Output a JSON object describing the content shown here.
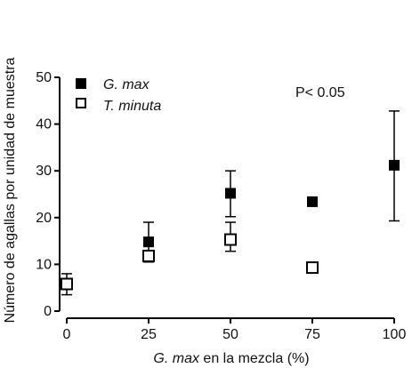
{
  "chart_data": {
    "type": "scatter",
    "title": "",
    "xlabel": {
      "italic_part": "G. max",
      "rest": " en la mezcla (%)"
    },
    "ylabel": "Número de agallas por unidad de muestra",
    "xlim": [
      0,
      100
    ],
    "ylim": [
      0,
      50
    ],
    "xticks": [
      "0",
      "25",
      "50",
      "75",
      "100"
    ],
    "yticks": [
      "0",
      "10",
      "20",
      "30",
      "40",
      "50"
    ],
    "legend_position": "top-left",
    "annotation": "P< 0.05",
    "series": [
      {
        "name": "G. max",
        "marker": "filled-square",
        "color": "#000000",
        "points": [
          {
            "x": 25,
            "y": 14.8,
            "err_low": 10.5,
            "err_high": 19.0
          },
          {
            "x": 50,
            "y": 25.2,
            "err_low": 20.2,
            "err_high": 30.0
          },
          {
            "x": 75,
            "y": 23.4,
            "err_low": null,
            "err_high": null
          },
          {
            "x": 100,
            "y": 31.2,
            "err_low": 19.3,
            "err_high": 42.8
          }
        ]
      },
      {
        "name": "T. minuta",
        "marker": "open-square",
        "color": "#000000",
        "points": [
          {
            "x": 0,
            "y": 5.8,
            "err_low": 3.5,
            "err_high": 8.0
          },
          {
            "x": 25,
            "y": 11.8,
            "err_low": null,
            "err_high": null
          },
          {
            "x": 50,
            "y": 15.3,
            "err_low": 12.8,
            "err_high": 19.0
          },
          {
            "x": 75,
            "y": 9.3,
            "err_low": null,
            "err_high": null
          }
        ]
      }
    ]
  }
}
